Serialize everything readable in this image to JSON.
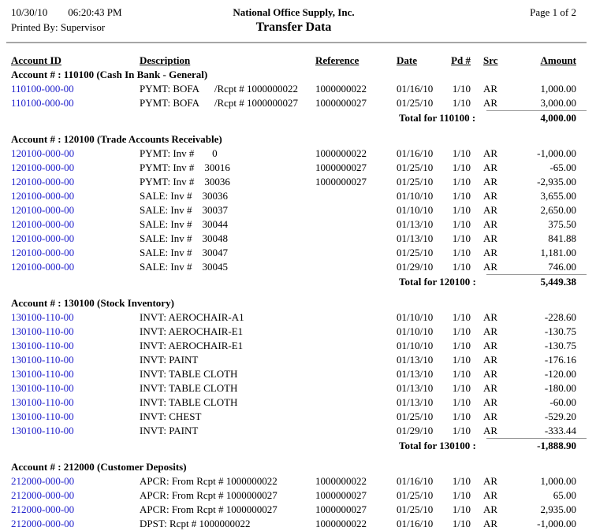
{
  "header": {
    "date": "10/30/10",
    "time": "06:20:43 PM",
    "company": "National Office Supply, Inc.",
    "page": "Page 1 of  2",
    "printed_by": "Printed By: Supervisor",
    "title": "Transfer Data"
  },
  "columns": [
    "Account ID",
    "Description",
    "Reference",
    "Date",
    "Pd #",
    "Src",
    "Amount"
  ],
  "colors": {
    "account_link": "#2222CC",
    "rule": "#999999"
  },
  "sections": [
    {
      "heading": "Account # : 110100 (Cash In Bank - General)",
      "rows": [
        {
          "account": "110100-000-00",
          "desc": "PYMT: BOFA      /Rcpt # 1000000022",
          "ref": "1000000022",
          "date": "01/16/10",
          "pd": "1/10",
          "src": "AR",
          "amount": "1,000.00"
        },
        {
          "account": "110100-000-00",
          "desc": "PYMT: BOFA      /Rcpt # 1000000027",
          "ref": "1000000027",
          "date": "01/25/10",
          "pd": "1/10",
          "src": "AR",
          "amount": "3,000.00"
        }
      ],
      "total_label": "Total for 110100 :",
      "total": "4,000.00"
    },
    {
      "heading": "Account # : 120100 (Trade Accounts Receivable)",
      "rows": [
        {
          "account": "120100-000-00",
          "desc": "PYMT: Inv #       0",
          "ref": "1000000022",
          "date": "01/16/10",
          "pd": "1/10",
          "src": "AR",
          "amount": "-1,000.00"
        },
        {
          "account": "120100-000-00",
          "desc": "PYMT: Inv #    30016",
          "ref": "1000000027",
          "date": "01/25/10",
          "pd": "1/10",
          "src": "AR",
          "amount": "-65.00"
        },
        {
          "account": "120100-000-00",
          "desc": "PYMT: Inv #    30036",
          "ref": "1000000027",
          "date": "01/25/10",
          "pd": "1/10",
          "src": "AR",
          "amount": "-2,935.00"
        },
        {
          "account": "120100-000-00",
          "desc": "SALE: Inv #    30036",
          "ref": "",
          "date": "01/10/10",
          "pd": "1/10",
          "src": "AR",
          "amount": "3,655.00"
        },
        {
          "account": "120100-000-00",
          "desc": "SALE: Inv #    30037",
          "ref": "",
          "date": "01/10/10",
          "pd": "1/10",
          "src": "AR",
          "amount": "2,650.00"
        },
        {
          "account": "120100-000-00",
          "desc": "SALE: Inv #    30044",
          "ref": "",
          "date": "01/13/10",
          "pd": "1/10",
          "src": "AR",
          "amount": "375.50"
        },
        {
          "account": "120100-000-00",
          "desc": "SALE: Inv #    30048",
          "ref": "",
          "date": "01/13/10",
          "pd": "1/10",
          "src": "AR",
          "amount": "841.88"
        },
        {
          "account": "120100-000-00",
          "desc": "SALE: Inv #    30047",
          "ref": "",
          "date": "01/25/10",
          "pd": "1/10",
          "src": "AR",
          "amount": "1,181.00"
        },
        {
          "account": "120100-000-00",
          "desc": "SALE: Inv #    30045",
          "ref": "",
          "date": "01/29/10",
          "pd": "1/10",
          "src": "AR",
          "amount": "746.00"
        }
      ],
      "total_label": "Total for 120100 :",
      "total": "5,449.38"
    },
    {
      "heading": "Account # : 130100 (Stock Inventory)",
      "rows": [
        {
          "account": "130100-110-00",
          "desc": "INVT: AEROCHAIR-A1",
          "ref": "",
          "date": "01/10/10",
          "pd": "1/10",
          "src": "AR",
          "amount": "-228.60"
        },
        {
          "account": "130100-110-00",
          "desc": "INVT: AEROCHAIR-E1",
          "ref": "",
          "date": "01/10/10",
          "pd": "1/10",
          "src": "AR",
          "amount": "-130.75"
        },
        {
          "account": "130100-110-00",
          "desc": "INVT: AEROCHAIR-E1",
          "ref": "",
          "date": "01/10/10",
          "pd": "1/10",
          "src": "AR",
          "amount": "-130.75"
        },
        {
          "account": "130100-110-00",
          "desc": "INVT: PAINT",
          "ref": "",
          "date": "01/13/10",
          "pd": "1/10",
          "src": "AR",
          "amount": "-176.16"
        },
        {
          "account": "130100-110-00",
          "desc": "INVT: TABLE CLOTH",
          "ref": "",
          "date": "01/13/10",
          "pd": "1/10",
          "src": "AR",
          "amount": "-120.00"
        },
        {
          "account": "130100-110-00",
          "desc": "INVT: TABLE CLOTH",
          "ref": "",
          "date": "01/13/10",
          "pd": "1/10",
          "src": "AR",
          "amount": "-180.00"
        },
        {
          "account": "130100-110-00",
          "desc": "INVT: TABLE CLOTH",
          "ref": "",
          "date": "01/13/10",
          "pd": "1/10",
          "src": "AR",
          "amount": "-60.00"
        },
        {
          "account": "130100-110-00",
          "desc": "INVT: CHEST",
          "ref": "",
          "date": "01/25/10",
          "pd": "1/10",
          "src": "AR",
          "amount": "-529.20"
        },
        {
          "account": "130100-110-00",
          "desc": "INVT: PAINT",
          "ref": "",
          "date": "01/29/10",
          "pd": "1/10",
          "src": "AR",
          "amount": "-333.44"
        }
      ],
      "total_label": "Total for 130100 :",
      "total": "-1,888.90"
    },
    {
      "heading": "Account # : 212000 (Customer Deposits)",
      "rows": [
        {
          "account": "212000-000-00",
          "desc": "APCR: From Rcpt # 1000000022",
          "ref": "1000000022",
          "date": "01/16/10",
          "pd": "1/10",
          "src": "AR",
          "amount": "1,000.00"
        },
        {
          "account": "212000-000-00",
          "desc": "APCR: From Rcpt # 1000000027",
          "ref": "1000000027",
          "date": "01/25/10",
          "pd": "1/10",
          "src": "AR",
          "amount": "65.00"
        },
        {
          "account": "212000-000-00",
          "desc": "APCR: From Rcpt # 1000000027",
          "ref": "1000000027",
          "date": "01/25/10",
          "pd": "1/10",
          "src": "AR",
          "amount": "2,935.00"
        },
        {
          "account": "212000-000-00",
          "desc": "DPST: Rcpt # 1000000022",
          "ref": "1000000022",
          "date": "01/16/10",
          "pd": "1/10",
          "src": "AR",
          "amount": "-1,000.00"
        }
      ],
      "total_label": null,
      "total": null
    }
  ]
}
